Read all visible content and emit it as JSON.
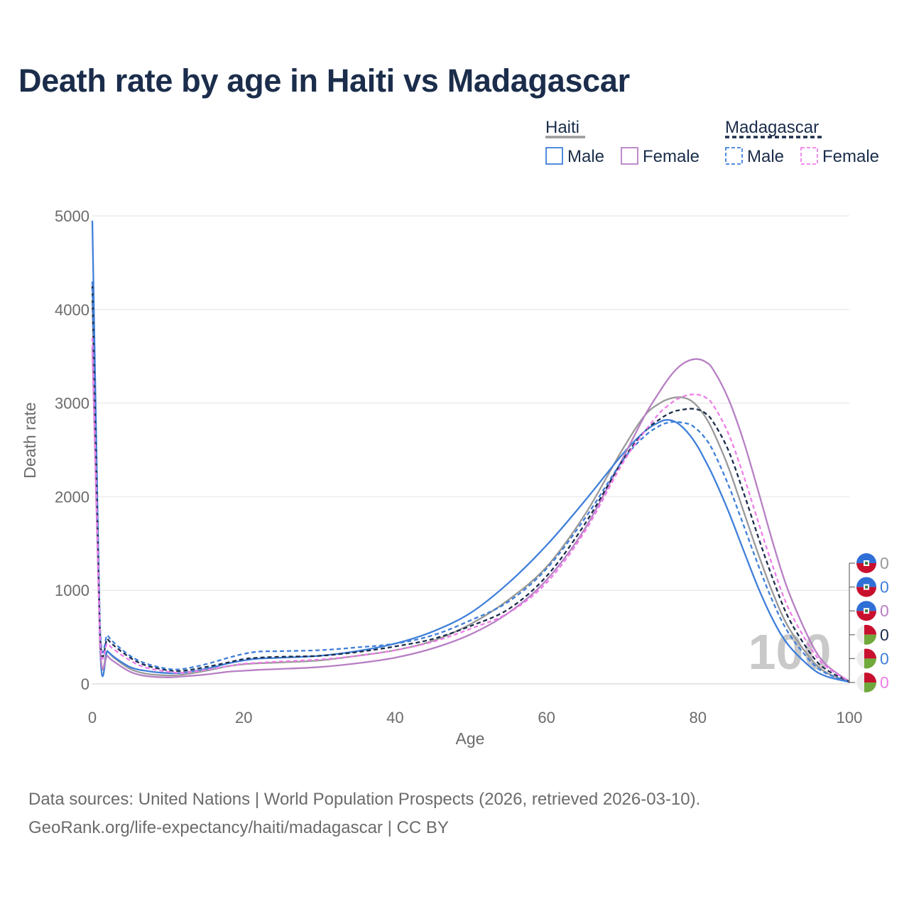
{
  "title": "Death rate by age in Haiti vs Madagascar",
  "footer": {
    "line1": "Data sources: United Nations | World Population Prospects (2026, retrieved 2026-03-10).",
    "line2": "GeoRank.org/life-expectancy/haiti/madagascar | CC BY"
  },
  "legend": {
    "groups": [
      {
        "name": "Haiti",
        "style": "solid",
        "entries": [
          "Male",
          "Female"
        ]
      },
      {
        "name": "Madagascar",
        "style": "dashed",
        "entries": [
          "Male",
          "Female"
        ]
      }
    ]
  },
  "animation_year": "100",
  "chart_data": {
    "type": "line",
    "title": "Death rate by age in Haiti vs Madagascar",
    "xlabel": "Age",
    "ylabel": "Death rate",
    "xlim": [
      0,
      100
    ],
    "ylim": [
      0,
      5000
    ],
    "xticks": [
      "0",
      "20",
      "40",
      "60",
      "80",
      "100"
    ],
    "yticks": [
      "0",
      "1000",
      "2000",
      "3000",
      "4000",
      "5000"
    ],
    "x": [
      0,
      1,
      2,
      3,
      5,
      7,
      10,
      12,
      15,
      18,
      20,
      22,
      25,
      30,
      35,
      40,
      45,
      50,
      55,
      60,
      65,
      70,
      73,
      75,
      76,
      77,
      78,
      79,
      80,
      81,
      82,
      84,
      86,
      88,
      90,
      92,
      95,
      97,
      100
    ],
    "series": [
      {
        "name": "Haiti total",
        "color": "#999999",
        "dash": "solid",
        "values": [
          4100,
          450,
          350,
          270,
          160,
          110,
          90,
          100,
          140,
          190,
          210,
          220,
          230,
          250,
          300,
          360,
          460,
          640,
          900,
          1250,
          1800,
          2500,
          2870,
          3000,
          3040,
          3060,
          3060,
          3030,
          2960,
          2850,
          2700,
          2320,
          1850,
          1380,
          950,
          600,
          260,
          120,
          20
        ]
      },
      {
        "name": "Haiti male",
        "color": "#3f7fd9",
        "dash": "solid",
        "values": [
          4950,
          440,
          350,
          280,
          180,
          140,
          115,
          120,
          160,
          220,
          250,
          270,
          280,
          300,
          350,
          430,
          560,
          760,
          1080,
          1480,
          1950,
          2450,
          2700,
          2800,
          2820,
          2800,
          2740,
          2650,
          2530,
          2380,
          2220,
          1850,
          1430,
          1020,
          670,
          410,
          170,
          80,
          20
        ]
      },
      {
        "name": "Haiti female",
        "color": "#b77fc4",
        "dash": "solid",
        "values": [
          3600,
          430,
          300,
          230,
          130,
          85,
          70,
          80,
          100,
          130,
          140,
          150,
          160,
          180,
          220,
          280,
          380,
          530,
          760,
          1110,
          1650,
          2400,
          2870,
          3130,
          3250,
          3350,
          3420,
          3460,
          3470,
          3440,
          3360,
          3050,
          2600,
          2050,
          1480,
          980,
          430,
          200,
          25
        ]
      },
      {
        "name": "Madagascar total",
        "color": "#1b2d4b",
        "dash": "dashed",
        "values": [
          4250,
          590,
          480,
          400,
          280,
          200,
          145,
          140,
          180,
          230,
          265,
          280,
          290,
          300,
          340,
          400,
          480,
          620,
          800,
          1150,
          1700,
          2380,
          2700,
          2830,
          2880,
          2915,
          2930,
          2940,
          2930,
          2890,
          2800,
          2500,
          2050,
          1560,
          1100,
          700,
          310,
          150,
          25
        ]
      },
      {
        "name": "Madagascar male",
        "color": "#3f7fd9",
        "dash": "dashed",
        "values": [
          4300,
          640,
          520,
          430,
          300,
          220,
          160,
          160,
          210,
          280,
          320,
          345,
          350,
          360,
          390,
          430,
          520,
          680,
          880,
          1230,
          1760,
          2380,
          2650,
          2760,
          2790,
          2800,
          2790,
          2770,
          2710,
          2620,
          2490,
          2130,
          1700,
          1260,
          860,
          540,
          230,
          110,
          20
        ]
      },
      {
        "name": "Madagascar female",
        "color": "#ee7de8",
        "dash": "dashed",
        "values": [
          3700,
          530,
          430,
          360,
          250,
          175,
          130,
          120,
          150,
          190,
          215,
          225,
          240,
          260,
          300,
          360,
          450,
          590,
          760,
          1080,
          1620,
          2350,
          2700,
          2900,
          2970,
          3030,
          3070,
          3090,
          3090,
          3060,
          2980,
          2680,
          2230,
          1720,
          1230,
          800,
          370,
          180,
          30
        ]
      }
    ],
    "end_labels": [
      {
        "country": "Haiti",
        "text": "0",
        "color": "#999999"
      },
      {
        "country": "Haiti",
        "text": "0",
        "color": "#3f7fd9"
      },
      {
        "country": "Haiti",
        "text": "0",
        "color": "#b77fc4"
      },
      {
        "country": "Madagascar",
        "text": "0",
        "color": "#1b2d4b"
      },
      {
        "country": "Madagascar",
        "text": "0",
        "color": "#3f7fd9"
      },
      {
        "country": "Madagascar",
        "text": "0",
        "color": "#ee7de8"
      }
    ]
  }
}
